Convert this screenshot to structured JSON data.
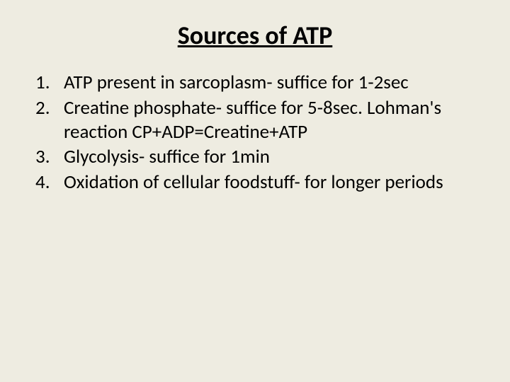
{
  "slide": {
    "background_color": "#eeece1",
    "title": {
      "text": "Sources of ATP",
      "fontsize": 36,
      "weight": 700,
      "underline": true,
      "color": "#000000",
      "align": "center"
    },
    "list": {
      "type": "ordered",
      "fontsize": 27,
      "color": "#000000",
      "items": [
        {
          "text": "ATP present in sarcoplasm- suffice for    1-2sec"
        },
        {
          "text": "Creatine phosphate- suffice for 5-8sec. Lohman's reaction CP+ADP=Creatine+ATP"
        },
        {
          "text": "Glycolysis- suffice for 1min"
        },
        {
          "text": "Oxidation of cellular foodstuff- for longer periods"
        }
      ]
    }
  }
}
